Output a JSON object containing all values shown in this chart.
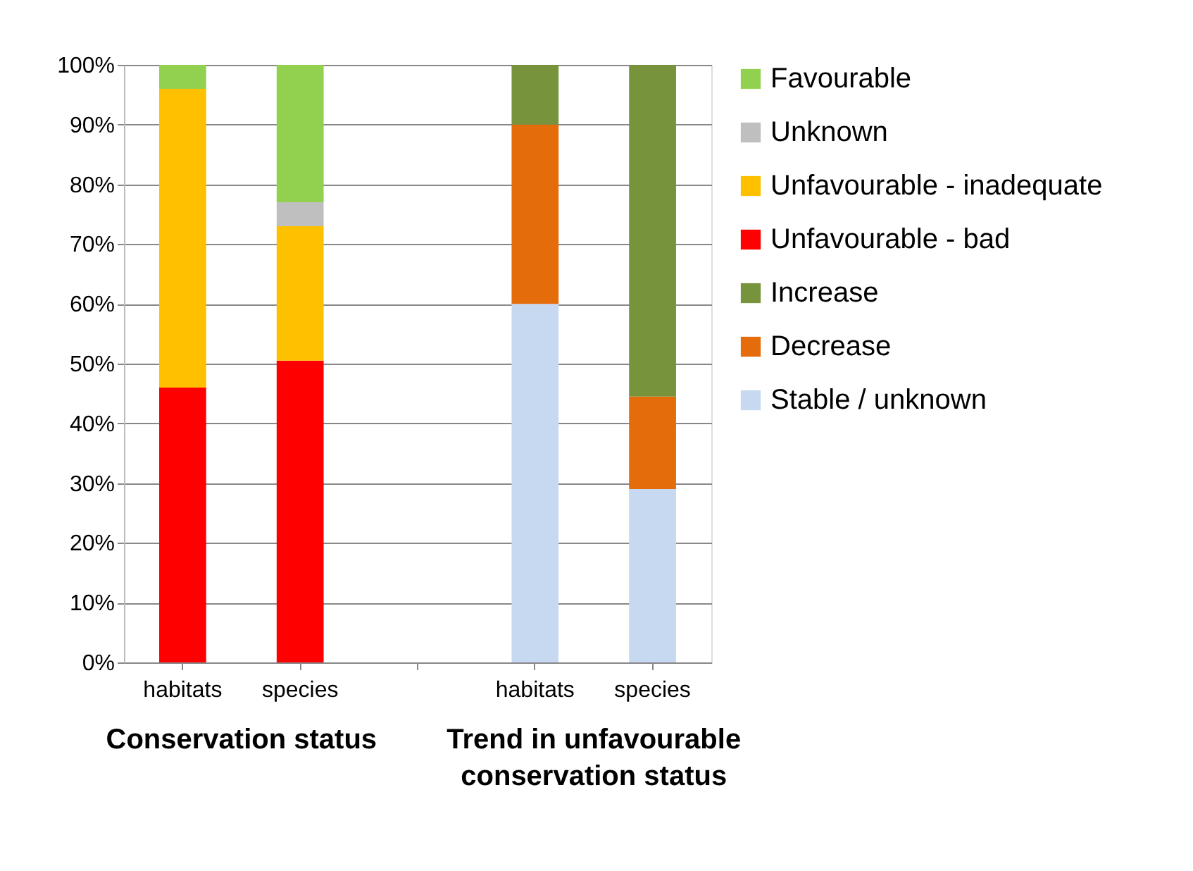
{
  "chart_data": {
    "type": "bar",
    "stacked": true,
    "categories": [
      "habitats",
      "species",
      null,
      "habitats",
      "species"
    ],
    "series": [
      {
        "name": "Unfavourable - bad",
        "color": "#ff0000",
        "values": [
          46,
          50.5,
          null,
          null,
          null
        ]
      },
      {
        "name": "Unfavourable - inadequate",
        "color": "#ffc000",
        "values": [
          50,
          22.5,
          null,
          null,
          null
        ]
      },
      {
        "name": "Unknown",
        "color": "#bfbfbf",
        "values": [
          0,
          4,
          null,
          null,
          null
        ]
      },
      {
        "name": "Favourable",
        "color": "#92d050",
        "values": [
          4,
          23,
          null,
          null,
          null
        ]
      },
      {
        "name": "Stable / unknown",
        "color": "#c6d9f1",
        "values": [
          null,
          null,
          null,
          60,
          29
        ]
      },
      {
        "name": "Decrease",
        "color": "#e46c0a",
        "values": [
          null,
          null,
          null,
          30,
          15.5
        ]
      },
      {
        "name": "Increase",
        "color": "#77933c",
        "values": [
          null,
          null,
          null,
          10,
          55.5
        ]
      }
    ],
    "ylim": [
      0,
      100
    ],
    "yticks": [
      {
        "value": 0,
        "label": "0%"
      },
      {
        "value": 10,
        "label": "10%"
      },
      {
        "value": 20,
        "label": "20%"
      },
      {
        "value": 30,
        "label": "30%"
      },
      {
        "value": 40,
        "label": "40%"
      },
      {
        "value": 50,
        "label": "50%"
      },
      {
        "value": 60,
        "label": "60%"
      },
      {
        "value": 70,
        "label": "70%"
      },
      {
        "value": 80,
        "label": "80%"
      },
      {
        "value": 90,
        "label": "90%"
      },
      {
        "value": 100,
        "label": "100%"
      }
    ],
    "annotations": [
      "Conservation status",
      "Trend in unfavourable conservation status"
    ],
    "grid": "y",
    "legend": "right"
  }
}
